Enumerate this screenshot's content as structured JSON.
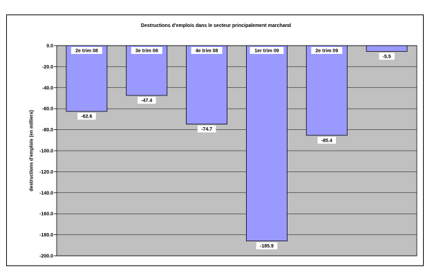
{
  "chart_data": {
    "type": "bar",
    "title": "Destructions d'emplois dans le secteur principalement marchand",
    "xlabel": "",
    "ylabel": "destructions d'emplois (en milliers)",
    "categories": [
      "2e trim 08",
      "3e trim 08",
      "4e trim 08",
      "1er trim 09",
      "2e trim 09",
      ""
    ],
    "values": [
      -62.6,
      -47.4,
      -74.7,
      -185.9,
      -85.4,
      -5.5
    ],
    "value_labels": [
      "-62.6",
      "-47.4",
      "-74.7",
      "-185.9",
      "-85.4",
      "-5.5"
    ],
    "ylim": [
      -200,
      0
    ],
    "yticks": [
      "0.0",
      "-20.0",
      "-40.0",
      "-60.0",
      "-80.0",
      "-100.0",
      "-120.0",
      "-140.0",
      "-160.0",
      "-180.0",
      "-200.0"
    ],
    "grid": true,
    "colors": {
      "plot_bg": "#c0c0c0",
      "bar_fill": "#9999ff",
      "bar_stroke": "#000000",
      "grid": "#000000"
    }
  }
}
